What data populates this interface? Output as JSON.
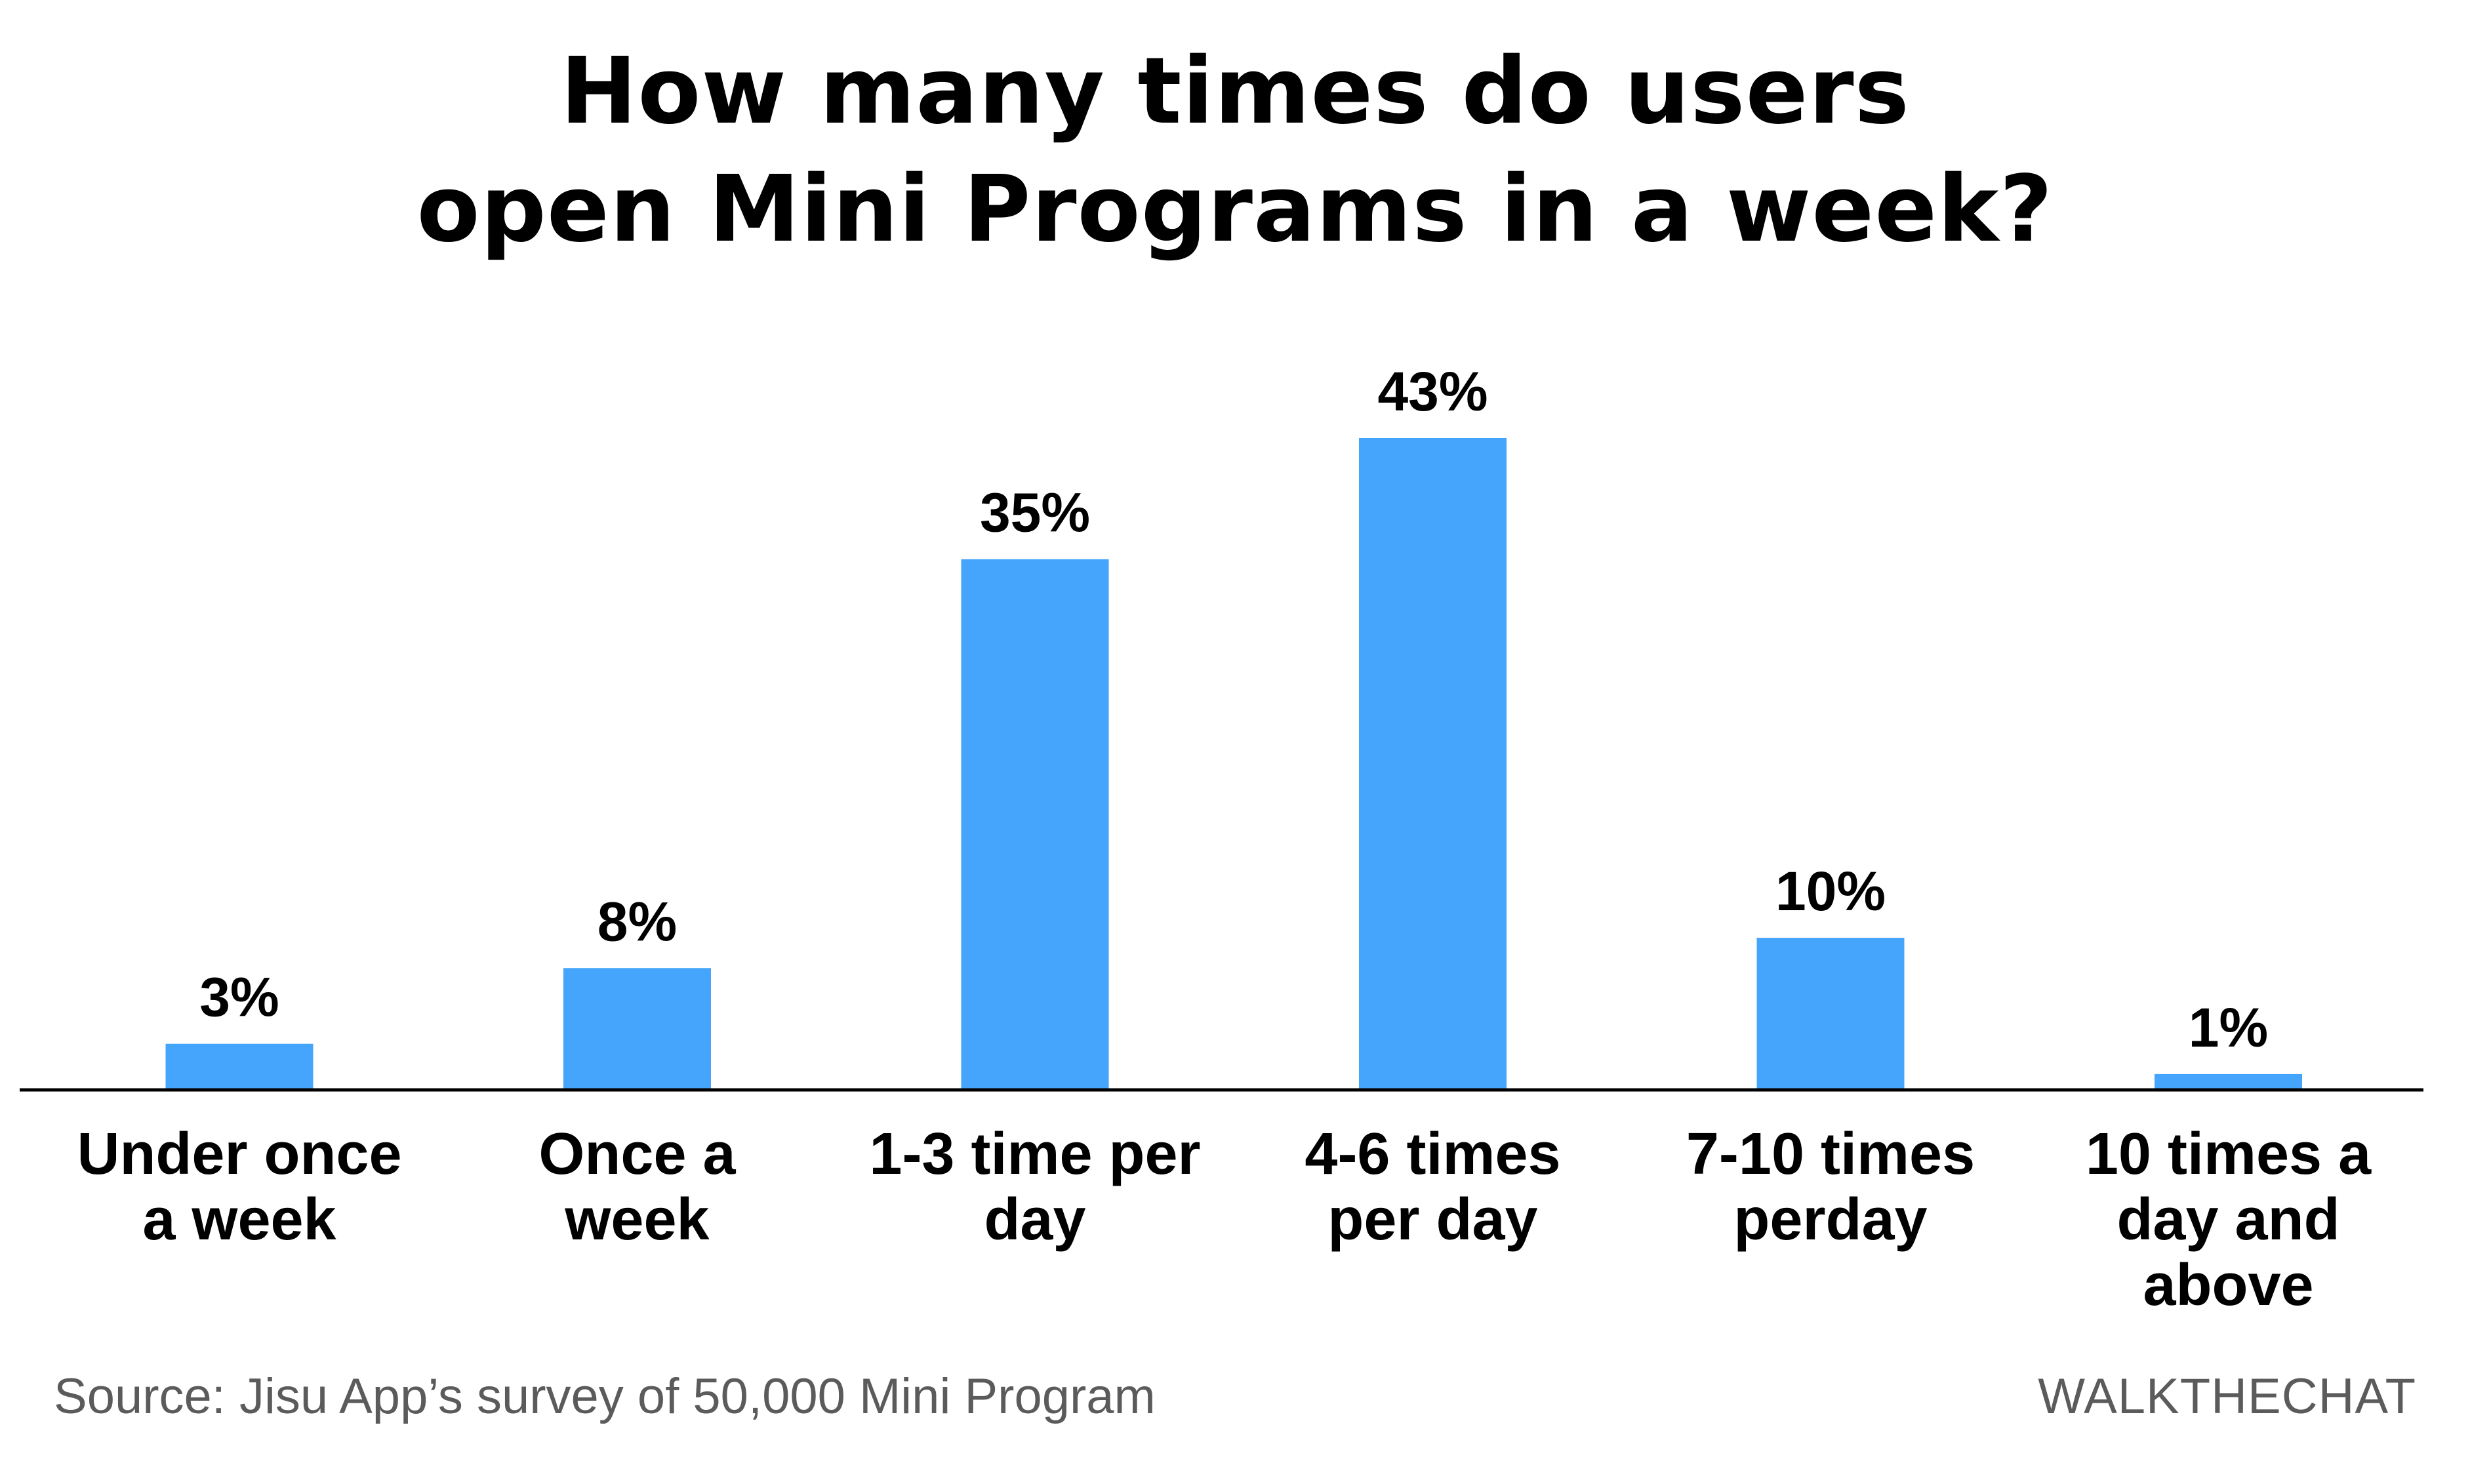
{
  "title_lines": [
    "How many times do users",
    "open Mini Programs in a week?"
  ],
  "footer": {
    "source": "Source: Jisu App’s survey of 50,000 Mini Program",
    "brand": "WALKTHECHAT"
  },
  "colors": {
    "bar": "#45a4fb",
    "text": "#000000",
    "footer_text": "#5b5b5b",
    "axis": "#000000"
  },
  "chart_data": {
    "type": "bar",
    "title": "How many times do users open Mini Programs in a week?",
    "categories": [
      [
        "Under once",
        "a week"
      ],
      [
        "Once a",
        "week"
      ],
      [
        "1-3 time per",
        "day"
      ],
      [
        "4-6 times",
        "per day"
      ],
      [
        "7-10 times",
        "perday"
      ],
      [
        "10 times a",
        "day and",
        "above"
      ]
    ],
    "values": [
      3,
      8,
      35,
      43,
      10,
      1
    ],
    "value_labels": [
      "3%",
      "8%",
      "35%",
      "43%",
      "10%",
      "1%"
    ],
    "unit": "%",
    "ylim": [
      0,
      43
    ],
    "grid": false,
    "legend": "none",
    "xlabel": "",
    "ylabel": ""
  }
}
